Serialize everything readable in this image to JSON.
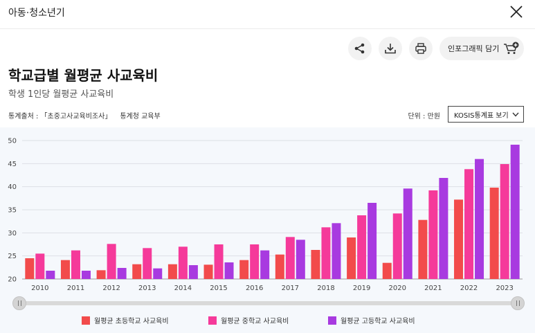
{
  "header": {
    "category": "아동·청소년기"
  },
  "tools": {
    "infographic_label": "인포그래픽 담기"
  },
  "title": "학교급별 월평균 사교육비",
  "subtitle": "학생 1인당 월평균 사교육비",
  "source": {
    "label": "통계출처 : 「초중고사교육비조사」",
    "org": "통계청 교육부"
  },
  "unit": "단위 : 만원",
  "kosis_button": "KOSIS통계표 보기",
  "colors": {
    "elementary": "#f24b4b",
    "middle": "#f53a9a",
    "high": "#a83ae0"
  },
  "chart_data": {
    "type": "bar",
    "categories": [
      "2010",
      "2011",
      "2012",
      "2013",
      "2014",
      "2015",
      "2016",
      "2017",
      "2018",
      "2019",
      "2020",
      "2021",
      "2022",
      "2023"
    ],
    "series": [
      {
        "name": "월평균 초등학교 사교육비",
        "values": [
          24.5,
          24.1,
          21.9,
          23.2,
          23.2,
          23.1,
          24.1,
          25.3,
          26.3,
          29.0,
          23.5,
          32.8,
          37.2,
          39.8
        ]
      },
      {
        "name": "월평균 중학교 사교육비",
        "values": [
          25.5,
          26.2,
          27.6,
          26.7,
          27.0,
          27.5,
          27.5,
          29.1,
          31.2,
          33.8,
          34.2,
          39.2,
          43.8,
          44.9
        ]
      },
      {
        "name": "월평균 고등학교 사교육비",
        "values": [
          21.8,
          21.8,
          22.4,
          22.3,
          23.0,
          23.6,
          26.2,
          28.5,
          32.1,
          36.5,
          39.6,
          41.9,
          46.0,
          49.1
        ]
      }
    ],
    "ylim": [
      20,
      50
    ],
    "yticks": [
      20,
      25,
      30,
      35,
      40,
      45,
      50
    ],
    "grid": true,
    "legend_position": "bottom"
  }
}
